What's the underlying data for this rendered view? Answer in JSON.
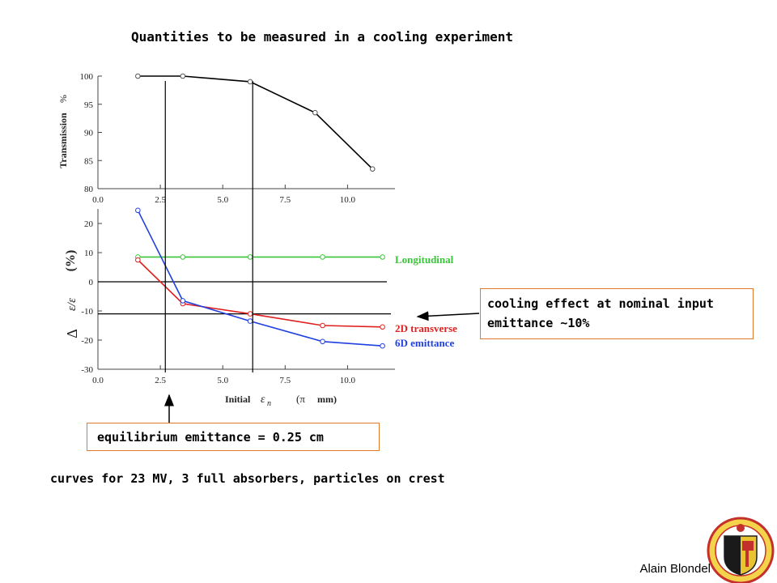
{
  "slide": {
    "title": "Quantities to be measured in a cooling experiment",
    "note_bottom": "curves for 23 MV, 3 full absorbers, particles on crest",
    "author": "Alain Blondel",
    "callout_right": [
      "cooling effect at nominal input",
      "emittance ~10%"
    ],
    "callout_bottom": "equilibrium emittance = 0.25 cm",
    "accent_border": "#e07a2a"
  },
  "chart_data": [
    {
      "type": "line",
      "ylabel": "Transmission",
      "yunit": "%",
      "xlim": [
        0.0,
        11.9
      ],
      "ylim": [
        80,
        100
      ],
      "xticks": [
        "0.0",
        "2.5",
        "5.0",
        "7.5",
        "10.0"
      ],
      "yticks": [
        "80",
        "85",
        "90",
        "95",
        "100"
      ],
      "series": [
        {
          "color": "#000000",
          "x": [
            1.6,
            3.4,
            6.1,
            8.7,
            11.0
          ],
          "y": [
            100,
            100,
            99,
            93.5,
            83.5
          ]
        }
      ]
    },
    {
      "type": "line",
      "xlabel": "Initial",
      "xlabel_symbol": "ε",
      "xlabel_sub": "n",
      "xunit_left": "(π",
      "xunit_right": "mm)",
      "ylabel_delta": "Δ",
      "ylabel_ratio": "ε/ε",
      "ylabel_unit": "(%)",
      "xlim": [
        0.0,
        11.9
      ],
      "ylim": [
        -30,
        25
      ],
      "xticks": [
        "0.0",
        "2.5",
        "5.0",
        "7.5",
        "10.0"
      ],
      "yticks": [
        "-30",
        "-20",
        "-10",
        "0",
        "10",
        "20"
      ],
      "hlines": [
        0,
        -11
      ],
      "series": [
        {
          "name": "Longitudinal",
          "color": "#3ac43a",
          "x": [
            1.6,
            3.4,
            6.1,
            9.0,
            11.4
          ],
          "y": [
            8.5,
            8.5,
            8.5,
            8.5,
            8.5
          ]
        },
        {
          "name": "2D transverse",
          "color": "#e02020",
          "x": [
            1.6,
            3.4,
            6.1,
            9.0,
            11.4
          ],
          "y": [
            7.5,
            -7.5,
            -11.0,
            -15.0,
            -15.5
          ]
        },
        {
          "name": "6D emittance",
          "color": "#2040e0",
          "x": [
            1.6,
            3.4,
            6.1,
            9.0,
            11.4
          ],
          "y": [
            24.5,
            -6.5,
            -13.5,
            -20.5,
            -22.0
          ]
        }
      ],
      "vlines": [
        2.7,
        6.2
      ]
    }
  ]
}
